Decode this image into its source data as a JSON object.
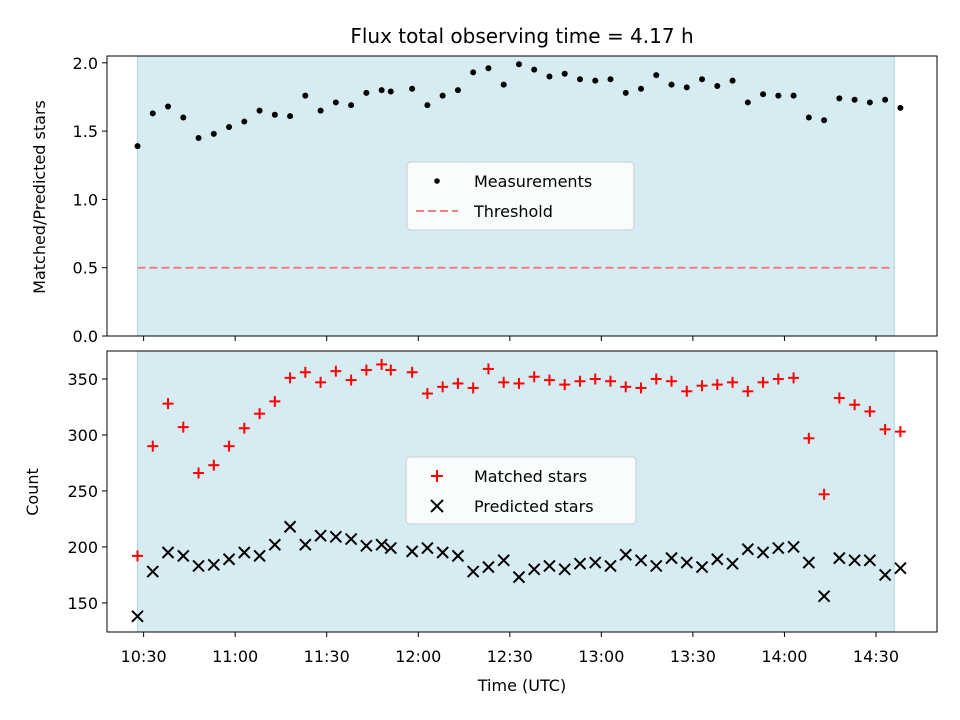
{
  "colors": {
    "shade": "#add8e6",
    "measurement": "#000000",
    "threshold": "#f08080",
    "matched": "#ff0000",
    "predicted": "#000000",
    "legend_bg": "#ffffff"
  },
  "chart_data": [
    {
      "type": "scatter",
      "title": "Flux total observing time = 4.17 h",
      "xlabel": "",
      "ylabel": "Matched/Predicted stars",
      "ylim": [
        0,
        2.05
      ],
      "xlim": [
        "10:18",
        "14:50"
      ],
      "yticks": [
        0.0,
        0.5,
        1.0,
        1.5,
        2.0
      ],
      "ytick_labels": [
        "0.0",
        "0.5",
        "1.0",
        "1.5",
        "2.0"
      ],
      "x_tick_labels": [],
      "legend_location": "center",
      "observing_window": [
        "10:28",
        "14:36"
      ],
      "threshold": 0.5,
      "legend": [
        "Measurements",
        "Threshold"
      ],
      "x": [
        "10:28",
        "10:33",
        "10:38",
        "10:43",
        "10:48",
        "10:53",
        "10:58",
        "11:03",
        "11:08",
        "11:13",
        "11:18",
        "11:23",
        "11:28",
        "11:33",
        "11:38",
        "11:43",
        "11:48",
        "11:51",
        "11:58",
        "12:03",
        "12:08",
        "12:13",
        "12:18",
        "12:23",
        "12:28",
        "12:33",
        "12:38",
        "12:43",
        "12:48",
        "12:53",
        "12:58",
        "13:03",
        "13:08",
        "13:13",
        "13:18",
        "13:23",
        "13:28",
        "13:33",
        "13:38",
        "13:43",
        "13:48",
        "13:53",
        "13:58",
        "14:03",
        "14:08",
        "14:13",
        "14:18",
        "14:23",
        "14:28",
        "14:33",
        "14:38"
      ],
      "series": [
        {
          "name": "Measurements",
          "values": [
            1.39,
            1.63,
            1.68,
            1.6,
            1.45,
            1.48,
            1.53,
            1.57,
            1.65,
            1.62,
            1.61,
            1.76,
            1.65,
            1.71,
            1.69,
            1.78,
            1.8,
            1.79,
            1.81,
            1.69,
            1.76,
            1.8,
            1.93,
            1.96,
            1.84,
            1.99,
            1.95,
            1.9,
            1.92,
            1.88,
            1.87,
            1.88,
            1.78,
            1.81,
            1.91,
            1.84,
            1.82,
            1.88,
            1.83,
            1.87,
            1.71,
            1.77,
            1.76,
            1.76,
            1.6,
            1.58,
            1.74,
            1.73,
            1.71,
            1.73,
            1.67
          ]
        }
      ]
    },
    {
      "type": "scatter",
      "title": "",
      "xlabel": "Time (UTC)",
      "ylabel": "Count",
      "ylim": [
        124,
        375
      ],
      "xlim": [
        "10:18",
        "14:50"
      ],
      "yticks": [
        150,
        200,
        250,
        300,
        350
      ],
      "ytick_labels": [
        "150",
        "200",
        "250",
        "300",
        "350"
      ],
      "x_ticks": [
        "10:30",
        "11:00",
        "11:30",
        "12:00",
        "12:30",
        "13:00",
        "13:30",
        "14:00",
        "14:30"
      ],
      "x_tick_labels": [
        "10:30",
        "11:00",
        "11:30",
        "12:00",
        "12:30",
        "13:00",
        "13:30",
        "14:00",
        "14:30"
      ],
      "legend_location": "center",
      "observing_window": [
        "10:28",
        "14:36"
      ],
      "legend": [
        "Matched stars",
        "Predicted stars"
      ],
      "x": [
        "10:28",
        "10:33",
        "10:38",
        "10:43",
        "10:48",
        "10:53",
        "10:58",
        "11:03",
        "11:08",
        "11:13",
        "11:18",
        "11:23",
        "11:28",
        "11:33",
        "11:38",
        "11:43",
        "11:48",
        "11:51",
        "11:58",
        "12:03",
        "12:08",
        "12:13",
        "12:18",
        "12:23",
        "12:28",
        "12:33",
        "12:38",
        "12:43",
        "12:48",
        "12:53",
        "12:58",
        "13:03",
        "13:08",
        "13:13",
        "13:18",
        "13:23",
        "13:28",
        "13:33",
        "13:38",
        "13:43",
        "13:48",
        "13:53",
        "13:58",
        "14:03",
        "14:08",
        "14:13",
        "14:18",
        "14:23",
        "14:28",
        "14:33",
        "14:38"
      ],
      "series": [
        {
          "name": "Matched stars",
          "marker": "plus",
          "values": [
            192,
            290,
            328,
            307,
            266,
            273,
            290,
            306,
            319,
            330,
            351,
            356,
            347,
            357,
            349,
            358,
            363,
            358,
            356,
            337,
            343,
            346,
            342,
            359,
            347,
            346,
            352,
            349,
            345,
            348,
            350,
            348,
            343,
            342,
            350,
            348,
            339,
            344,
            345,
            347,
            339,
            347,
            350,
            351,
            297,
            247,
            333,
            327,
            321,
            305,
            303
          ]
        },
        {
          "name": "Predicted stars",
          "marker": "x",
          "values": [
            138,
            178,
            195,
            192,
            183,
            184,
            189,
            195,
            192,
            202,
            218,
            202,
            210,
            209,
            207,
            201,
            202,
            199,
            196,
            199,
            195,
            192,
            178,
            182,
            188,
            173,
            180,
            183,
            180,
            185,
            186,
            183,
            193,
            188,
            183,
            190,
            186,
            182,
            189,
            185,
            198,
            195,
            199,
            200,
            186,
            156,
            190,
            188,
            188,
            175,
            181
          ]
        }
      ]
    }
  ]
}
